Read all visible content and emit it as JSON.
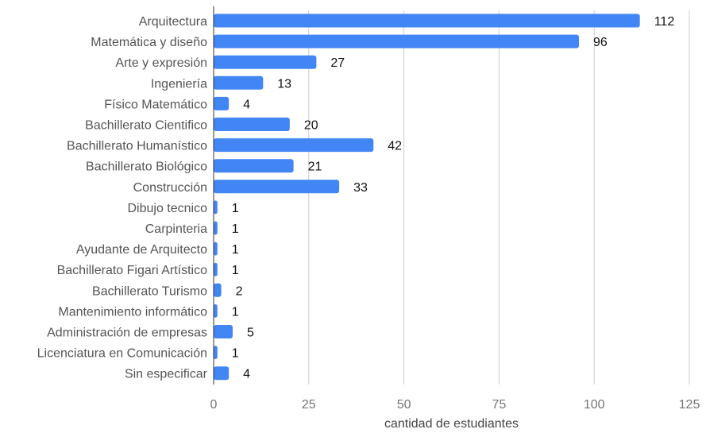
{
  "chart_data": {
    "type": "bar",
    "orientation": "horizontal",
    "categories": [
      "Arquitectura",
      "Matemática y diseño",
      "Arte y expresión",
      "Ingeniería",
      "Físico Matemático",
      "Bachillerato Cientifico",
      "Bachillerato Humanístico",
      "Bachillerato Biológico",
      "Construcción",
      "Dibujo tecnico",
      "Carpinteria",
      "Ayudante de Arquitecto",
      "Bachillerato Figari Artístico",
      "Bachillerato Turismo",
      "Mantenimiento informático",
      "Administración de empresas",
      "Licenciatura en Comunicación",
      "Sin especificar"
    ],
    "values": [
      112,
      96,
      27,
      13,
      4,
      20,
      42,
      21,
      33,
      1,
      1,
      1,
      1,
      2,
      1,
      5,
      1,
      4
    ],
    "xlabel": "cantidad de estudiantes",
    "ylabel": "",
    "title": "",
    "xlim": [
      0,
      125
    ],
    "xticks": [
      0,
      25,
      50,
      75,
      100,
      125
    ],
    "grid": true,
    "data_labels": true,
    "bar_color": "#4285F4",
    "grid_color": "#cccccc"
  }
}
